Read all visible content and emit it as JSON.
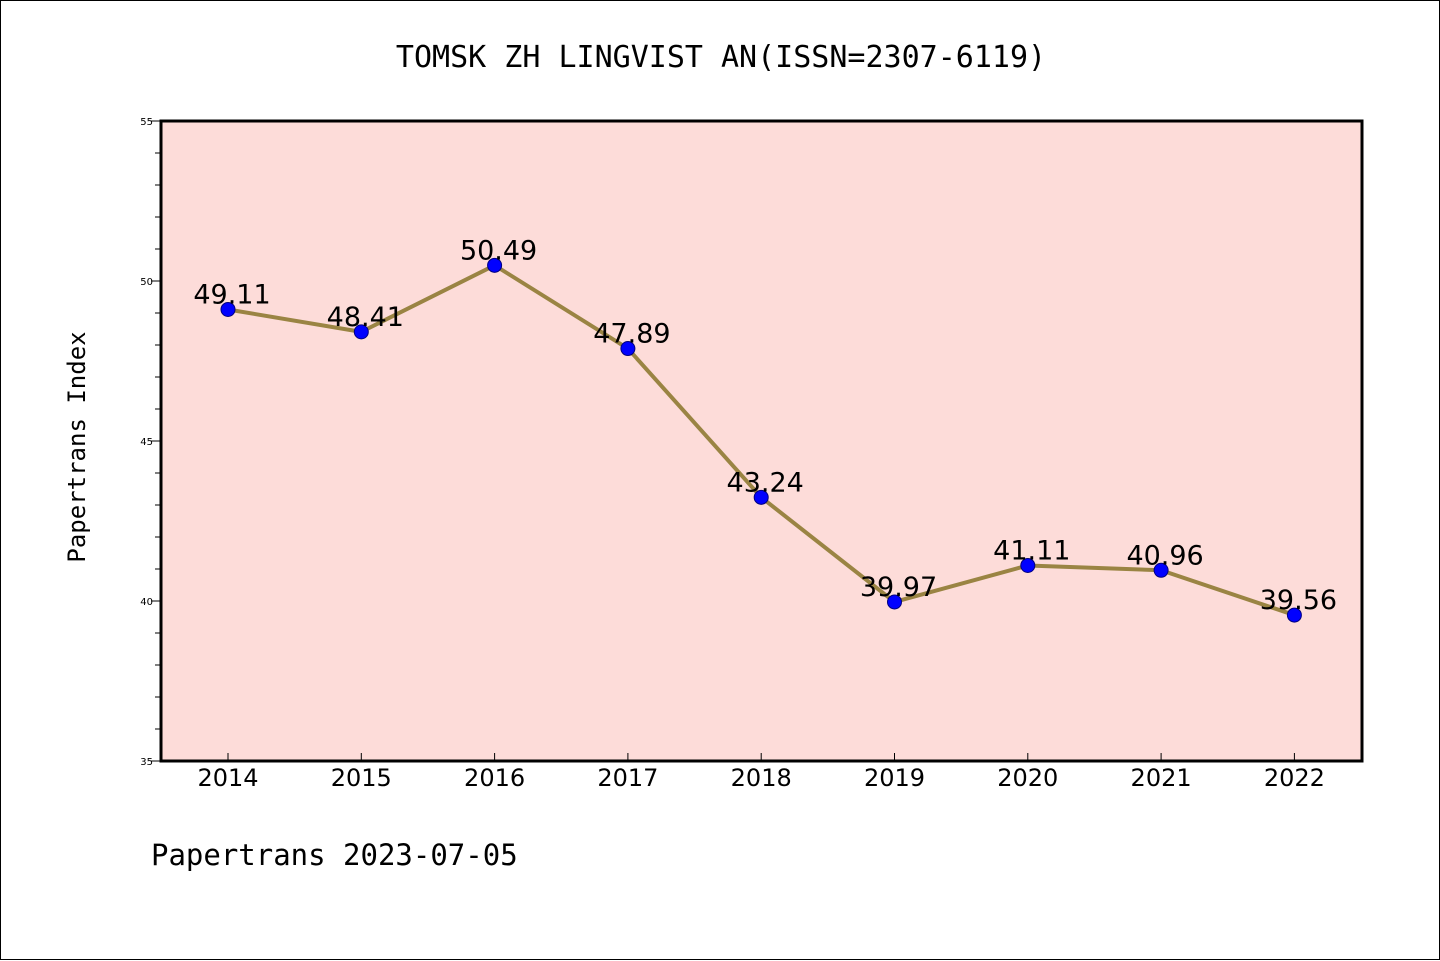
{
  "chart_data": {
    "type": "line",
    "title": "TOMSK ZH LINGVIST AN(ISSN=2307-6119)",
    "xlabel": "",
    "ylabel": "Papertrans Index",
    "categories": [
      "2014",
      "2015",
      "2016",
      "2017",
      "2018",
      "2019",
      "2020",
      "2021",
      "2022"
    ],
    "series": [
      {
        "values": [
          49.11,
          48.41,
          50.49,
          47.89,
          43.24,
          39.97,
          41.11,
          40.96,
          39.56
        ],
        "labels": [
          "49.11",
          "48.41",
          "50.49",
          "47.89",
          "43.24",
          "39.97",
          "41.11",
          "40.96",
          "39.56"
        ]
      }
    ],
    "ylim": [
      35,
      55
    ],
    "yticks": [
      "35",
      "40",
      "45",
      "50",
      "55"
    ],
    "grid": false,
    "legend": "none",
    "colors": {
      "plot_background": "#fddcd9",
      "line": "#9a8443",
      "marker_fill": "#0000ff",
      "marker_edge": "#000080"
    }
  },
  "footer": "Papertrans 2023-07-05"
}
